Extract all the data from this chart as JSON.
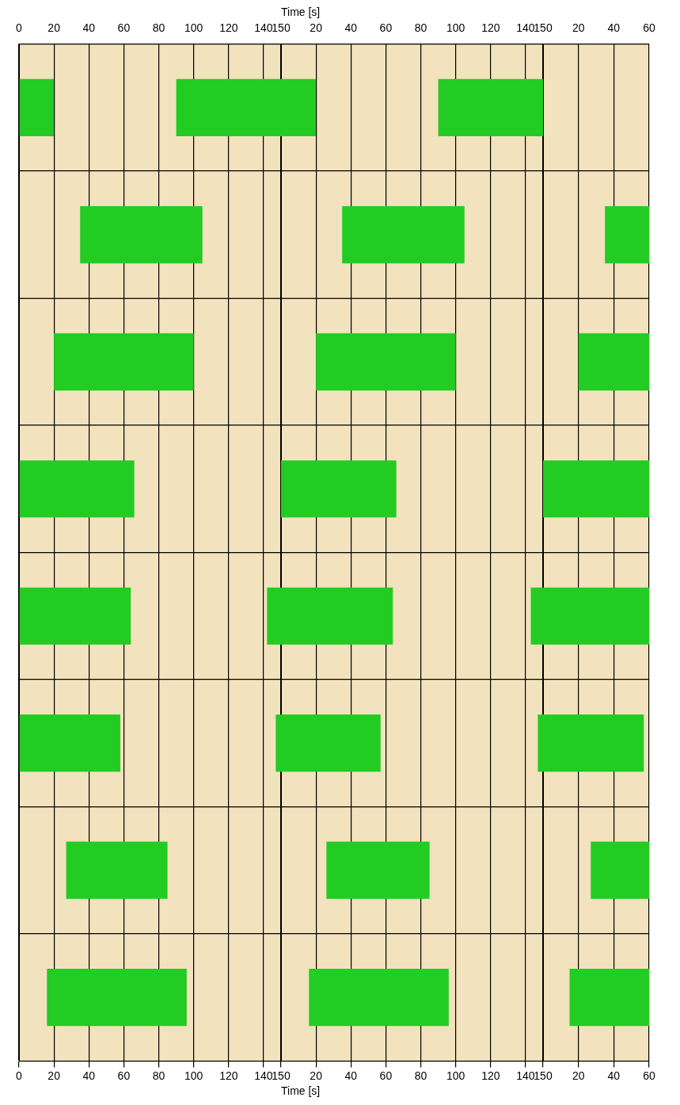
{
  "chart_data": [
    {
      "type": "bar",
      "orientation": "horizontal",
      "categories": [
        null,
        null,
        null,
        null,
        null,
        null,
        null,
        null
      ],
      "xlim": [
        0,
        150
      ],
      "x2lim": [
        0,
        150
      ],
      "xticks": [
        0,
        20,
        40,
        60,
        80,
        100,
        120,
        140,
        150
      ],
      "x2ticks": [
        0,
        20,
        40,
        60,
        80,
        100,
        120,
        140,
        150
      ],
      "series": [
        {
          "color": "#22cc22",
          "base": [
            0,
            35,
            20,
            0,
            0,
            0,
            27,
            16
          ],
          "values": [
            20,
            70,
            80,
            66,
            64,
            58,
            58,
            80
          ]
        },
        {
          "color": "#22cc22",
          "base": [
            90,
            null,
            null,
            null,
            142,
            147,
            null,
            null
          ],
          "values": [
            60,
            null,
            null,
            null,
            8,
            3,
            null,
            null
          ]
        }
      ],
      "grid": true
    },
    {
      "type": "bar",
      "orientation": "horizontal",
      "xlabel": "Time [s]",
      "x2label": "Time [s]",
      "categories": [
        null,
        null,
        null,
        null,
        null,
        null,
        null,
        null
      ],
      "xlim": [
        0,
        150
      ],
      "x2lim": [
        0,
        150
      ],
      "xticks": [
        20,
        40,
        60,
        80,
        100,
        120,
        140,
        150
      ],
      "x2ticks": [
        20,
        40,
        60,
        80,
        100,
        120,
        140,
        150
      ],
      "series": [
        {
          "color": "#22cc22",
          "base": [
            0,
            35,
            20,
            0,
            0,
            0,
            26,
            16
          ],
          "values": [
            20,
            70,
            80,
            66,
            64,
            57,
            59,
            80
          ]
        },
        {
          "color": "#22cc22",
          "base": [
            90,
            null,
            null,
            null,
            143,
            147,
            null,
            null
          ],
          "values": [
            60,
            null,
            null,
            null,
            7,
            3,
            null,
            null
          ]
        }
      ],
      "grid": true
    },
    {
      "type": "bar",
      "orientation": "horizontal",
      "categories": [
        null,
        null,
        null,
        null,
        null,
        null,
        null,
        null
      ],
      "xlim": [
        0,
        60
      ],
      "x2lim": [
        0,
        60
      ],
      "xticks": [
        20,
        40,
        60
      ],
      "x2ticks": [
        20,
        40,
        60
      ],
      "series": [
        {
          "color": "#22cc22",
          "base": [
            null,
            35,
            20,
            0,
            0,
            0,
            27,
            15
          ],
          "values": [
            null,
            25,
            40,
            60,
            60,
            57,
            33,
            45
          ]
        }
      ],
      "grid": true
    }
  ]
}
